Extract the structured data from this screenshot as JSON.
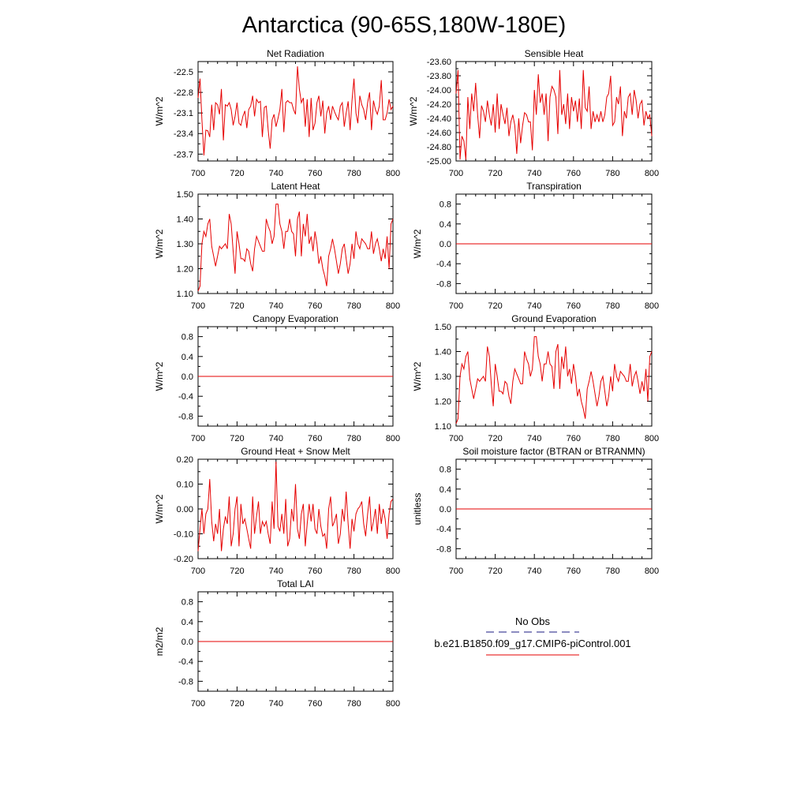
{
  "suptitle": "Antarctica (90-65S,180W-180E)",
  "colors": {
    "model": "#e60000",
    "obs": "#1a1a80",
    "axis": "#000000"
  },
  "legend": {
    "obs_label": "No Obs",
    "model_label": "b.e21.B1850.f09_g17.CMIP6-piControl.001"
  },
  "chart_data": [
    {
      "type": "line",
      "title": "Net Radiation",
      "ylabel": "W/m^2",
      "xlim": [
        700,
        800
      ],
      "ylim": [
        -23.8,
        -22.35
      ],
      "xticks": [
        700,
        720,
        740,
        760,
        780,
        800
      ],
      "xtick_labels": [
        "700",
        "720",
        "740",
        "760",
        "780",
        "800"
      ],
      "yticks": [
        -22.5,
        -22.8,
        -23.1,
        -23.4,
        -23.7
      ],
      "ytick_labels": [
        "-22.5",
        "-22.8",
        "-23.1",
        "-23.4",
        "-23.7"
      ],
      "x0": 700,
      "dx": 1,
      "values": [
        -22.88,
        -22.6,
        -23.2,
        -23.72,
        -23.35,
        -23.36,
        -23.45,
        -22.98,
        -23.35,
        -22.95,
        -22.98,
        -23.12,
        -22.75,
        -23.5,
        -22.98,
        -23.0,
        -22.95,
        -23.05,
        -23.28,
        -23.15,
        -22.95,
        -23.25,
        -23.28,
        -23.15,
        -23.07,
        -23.32,
        -23.05,
        -23.0,
        -22.85,
        -23.15,
        -22.9,
        -22.95,
        -22.93,
        -23.45,
        -23.02,
        -23.0,
        -23.35,
        -23.62,
        -23.2,
        -23.12,
        -23.3,
        -23.18,
        -23.05,
        -22.75,
        -23.38,
        -22.95,
        -22.92,
        -22.95,
        -22.95,
        -23.05,
        -23.12,
        -22.42,
        -22.75,
        -22.95,
        -22.88,
        -23.3,
        -22.9,
        -23.45,
        -22.88,
        -23.35,
        -23.25,
        -22.95,
        -22.85,
        -23.15,
        -22.92,
        -23.4,
        -23.1,
        -23.0,
        -23.2,
        -23.0,
        -23.08,
        -23.15,
        -23.2,
        -23.0,
        -22.95,
        -23.3,
        -23.1,
        -22.93,
        -23.35,
        -22.92,
        -22.6,
        -23.1,
        -23.25,
        -22.85,
        -22.98,
        -23.05,
        -23.2,
        -22.95,
        -22.8,
        -23.35,
        -22.92,
        -23.05,
        -23.12,
        -23.0,
        -22.62,
        -23.2,
        -23.2,
        -23.1,
        -22.9,
        -23.05,
        -23.0
      ]
    },
    {
      "type": "line",
      "title": "Sensible Heat",
      "ylabel": "W/m^2",
      "xlim": [
        700,
        800
      ],
      "ylim": [
        -25.0,
        -23.6
      ],
      "xticks": [
        700,
        720,
        740,
        760,
        780,
        800
      ],
      "xtick_labels": [
        "700",
        "720",
        "740",
        "760",
        "780",
        "800"
      ],
      "yticks": [
        -23.6,
        -23.8,
        -24.0,
        -24.2,
        -24.4,
        -24.6,
        -24.8,
        -25.0
      ],
      "ytick_labels": [
        "-23.60",
        "-23.80",
        "-24.00",
        "-24.20",
        "-24.40",
        "-24.60",
        "-24.80",
        "-25.00"
      ],
      "x0": 700,
      "dx": 1,
      "values": [
        -24.05,
        -23.72,
        -24.98,
        -24.65,
        -24.72,
        -24.98,
        -24.1,
        -24.55,
        -24.05,
        -24.3,
        -23.9,
        -24.35,
        -24.68,
        -24.22,
        -24.3,
        -24.45,
        -24.15,
        -24.35,
        -24.5,
        -24.2,
        -24.6,
        -24.05,
        -24.55,
        -24.2,
        -24.35,
        -24.48,
        -24.25,
        -24.65,
        -24.45,
        -24.35,
        -24.5,
        -24.9,
        -24.4,
        -24.75,
        -24.5,
        -24.32,
        -24.35,
        -24.45,
        -24.45,
        -24.85,
        -24.0,
        -24.35,
        -23.78,
        -24.18,
        -24.05,
        -24.35,
        -24.05,
        -24.72,
        -24.1,
        -23.95,
        -24.0,
        -24.1,
        -24.62,
        -23.72,
        -24.35,
        -24.2,
        -24.48,
        -24.05,
        -24.55,
        -24.1,
        -24.3,
        -24.15,
        -24.45,
        -24.12,
        -24.55,
        -23.72,
        -24.25,
        -24.3,
        -23.95,
        -24.55,
        -24.3,
        -24.45,
        -24.35,
        -24.45,
        -24.3,
        -24.45,
        -24.35,
        -24.1,
        -24.05,
        -23.8,
        -24.5,
        -24.45,
        -24.1,
        -24.2,
        -23.95,
        -24.65,
        -24.3,
        -24.4,
        -24.1,
        -24.05,
        -24.35,
        -24.0,
        -24.15,
        -24.4,
        -24.2,
        -24.15,
        -24.5,
        -24.3,
        -24.4,
        -24.35,
        -24.65
      ]
    },
    {
      "type": "line",
      "title": "Latent Heat",
      "ylabel": "W/m^2",
      "xlim": [
        700,
        800
      ],
      "ylim": [
        1.1,
        1.5
      ],
      "xticks": [
        700,
        720,
        740,
        760,
        780,
        800
      ],
      "xtick_labels": [
        "700",
        "720",
        "740",
        "760",
        "780",
        "800"
      ],
      "yticks": [
        1.5,
        1.4,
        1.3,
        1.2,
        1.1
      ],
      "ytick_labels": [
        "1.50",
        "1.40",
        "1.30",
        "1.20",
        "1.10"
      ],
      "x0": 700,
      "dx": 1,
      "values": [
        1.11,
        1.13,
        1.3,
        1.35,
        1.33,
        1.38,
        1.4,
        1.29,
        1.25,
        1.21,
        1.25,
        1.29,
        1.28,
        1.29,
        1.3,
        1.28,
        1.42,
        1.38,
        1.27,
        1.18,
        1.35,
        1.3,
        1.24,
        1.24,
        1.23,
        1.28,
        1.27,
        1.22,
        1.19,
        1.28,
        1.33,
        1.31,
        1.29,
        1.27,
        1.27,
        1.4,
        1.37,
        1.35,
        1.3,
        1.33,
        1.46,
        1.46,
        1.38,
        1.35,
        1.28,
        1.35,
        1.35,
        1.4,
        1.35,
        1.34,
        1.25,
        1.4,
        1.43,
        1.25,
        1.38,
        1.33,
        1.42,
        1.3,
        1.33,
        1.27,
        1.35,
        1.3,
        1.22,
        1.25,
        1.2,
        1.17,
        1.13,
        1.25,
        1.28,
        1.32,
        1.28,
        1.23,
        1.18,
        1.22,
        1.28,
        1.3,
        1.24,
        1.18,
        1.22,
        1.3,
        1.24,
        1.35,
        1.3,
        1.28,
        1.32,
        1.31,
        1.3,
        1.28,
        1.28,
        1.35,
        1.26,
        1.3,
        1.32,
        1.28,
        1.23,
        1.28,
        1.24,
        1.33,
        1.2,
        1.38,
        1.4
      ]
    },
    {
      "type": "line",
      "title": "Transpiration",
      "ylabel": "W/m^2",
      "xlim": [
        700,
        800
      ],
      "ylim": [
        -1.0,
        1.0
      ],
      "xticks": [
        700,
        720,
        740,
        760,
        780,
        800
      ],
      "xtick_labels": [
        "700",
        "720",
        "740",
        "760",
        "780",
        "800"
      ],
      "yticks": [
        0.8,
        0.4,
        0.0,
        -0.4,
        -0.8
      ],
      "ytick_labels": [
        "0.8",
        "0.4",
        "0.0",
        "-0.4",
        "-0.8"
      ],
      "x": [
        700,
        800
      ],
      "values": [
        0,
        0
      ]
    },
    {
      "type": "line",
      "title": "Canopy Evaporation",
      "ylabel": "W/m^2",
      "xlim": [
        700,
        800
      ],
      "ylim": [
        -1.0,
        1.0
      ],
      "xticks": [
        700,
        720,
        740,
        760,
        780,
        800
      ],
      "xtick_labels": [
        "700",
        "720",
        "740",
        "760",
        "780",
        "800"
      ],
      "yticks": [
        0.8,
        0.4,
        0.0,
        -0.4,
        -0.8
      ],
      "ytick_labels": [
        "0.8",
        "0.4",
        "0.0",
        "-0.4",
        "-0.8"
      ],
      "x": [
        700,
        800
      ],
      "values": [
        0,
        0
      ]
    },
    {
      "type": "line",
      "title": "Ground Evaporation",
      "ylabel": "W/m^2",
      "xlim": [
        700,
        800
      ],
      "ylim": [
        1.1,
        1.5
      ],
      "xticks": [
        700,
        720,
        740,
        760,
        780,
        800
      ],
      "xtick_labels": [
        "700",
        "720",
        "740",
        "760",
        "780",
        "800"
      ],
      "yticks": [
        1.5,
        1.4,
        1.3,
        1.2,
        1.1
      ],
      "ytick_labels": [
        "1.50",
        "1.40",
        "1.30",
        "1.20",
        "1.10"
      ],
      "x0": 700,
      "dx": 1,
      "values": [
        1.11,
        1.13,
        1.3,
        1.35,
        1.33,
        1.38,
        1.4,
        1.29,
        1.25,
        1.21,
        1.25,
        1.29,
        1.28,
        1.29,
        1.3,
        1.28,
        1.42,
        1.38,
        1.27,
        1.18,
        1.35,
        1.3,
        1.24,
        1.24,
        1.23,
        1.28,
        1.27,
        1.22,
        1.19,
        1.28,
        1.33,
        1.31,
        1.29,
        1.27,
        1.27,
        1.4,
        1.37,
        1.35,
        1.3,
        1.33,
        1.46,
        1.46,
        1.38,
        1.35,
        1.28,
        1.35,
        1.35,
        1.4,
        1.35,
        1.34,
        1.25,
        1.4,
        1.43,
        1.25,
        1.38,
        1.33,
        1.42,
        1.3,
        1.33,
        1.27,
        1.35,
        1.3,
        1.22,
        1.25,
        1.2,
        1.17,
        1.13,
        1.25,
        1.28,
        1.32,
        1.28,
        1.23,
        1.18,
        1.22,
        1.28,
        1.3,
        1.24,
        1.18,
        1.22,
        1.3,
        1.24,
        1.35,
        1.3,
        1.28,
        1.32,
        1.31,
        1.3,
        1.28,
        1.28,
        1.35,
        1.26,
        1.3,
        1.32,
        1.28,
        1.23,
        1.28,
        1.24,
        1.33,
        1.2,
        1.38,
        1.4
      ]
    },
    {
      "type": "line",
      "title": "Ground Heat + Snow Melt",
      "ylabel": "W/m^2",
      "xlim": [
        700,
        800
      ],
      "ylim": [
        -0.2,
        0.2
      ],
      "xticks": [
        700,
        720,
        740,
        760,
        780,
        800
      ],
      "xtick_labels": [
        "700",
        "720",
        "740",
        "760",
        "780",
        "800"
      ],
      "yticks": [
        0.2,
        0.1,
        0.0,
        -0.1,
        -0.2
      ],
      "ytick_labels": [
        "0.20",
        "0.10",
        "0.00",
        "-0.10",
        "-0.20"
      ],
      "x0": 700,
      "dx": 1,
      "values": [
        -0.17,
        -0.08,
        0.0,
        -0.1,
        -0.02,
        0.0,
        0.12,
        -0.05,
        -0.13,
        -0.06,
        -0.1,
        0.0,
        -0.17,
        -0.08,
        -0.03,
        -0.06,
        0.05,
        -0.15,
        -0.1,
        0.0,
        0.05,
        -0.15,
        0.02,
        -0.06,
        -0.04,
        -0.08,
        -0.12,
        -0.16,
        0.05,
        -0.1,
        -0.03,
        0.03,
        -0.1,
        -0.05,
        -0.07,
        -0.05,
        -0.1,
        -0.14,
        0.03,
        -0.08,
        0.19,
        -0.07,
        -0.09,
        -0.02,
        -0.1,
        0.04,
        -0.15,
        -0.12,
        0.0,
        -0.05,
        0.1,
        -0.08,
        -0.12,
        -0.02,
        0.02,
        -0.15,
        -0.06,
        0.02,
        -0.05,
        0.02,
        -0.08,
        -0.1,
        0.0,
        -0.07,
        -0.11,
        -0.1,
        -0.16,
        0.0,
        0.05,
        -0.07,
        -0.05,
        -0.02,
        -0.14,
        -0.1,
        0.0,
        -0.05,
        0.07,
        -0.06,
        -0.16,
        -0.04,
        -0.09,
        -0.02,
        0.0,
        0.01,
        0.03,
        -0.06,
        -0.11,
        -0.02,
        0.05,
        -0.09,
        -0.05,
        0.0,
        -0.1,
        0.02,
        -0.06,
        0.0,
        -0.04,
        -0.12,
        -0.02,
        0.03,
        0.04
      ]
    },
    {
      "type": "line",
      "title": "Soil moisture factor (BTRAN or BTRANMN)",
      "ylabel": "unitless",
      "xlim": [
        700,
        800
      ],
      "ylim": [
        -1.0,
        1.0
      ],
      "xticks": [
        700,
        720,
        740,
        760,
        780,
        800
      ],
      "xtick_labels": [
        "700",
        "720",
        "740",
        "760",
        "780",
        "800"
      ],
      "yticks": [
        0.8,
        0.4,
        0.0,
        -0.4,
        -0.8
      ],
      "ytick_labels": [
        "0.8",
        "0.4",
        "0.0",
        "-0.4",
        "-0.8"
      ],
      "x": [
        700,
        800
      ],
      "values": [
        0,
        0
      ]
    },
    {
      "type": "line",
      "title": "Total LAI",
      "ylabel": "m2/m2",
      "xlim": [
        700,
        800
      ],
      "ylim": [
        -1.0,
        1.0
      ],
      "xticks": [
        700,
        720,
        740,
        760,
        780,
        800
      ],
      "xtick_labels": [
        "700",
        "720",
        "740",
        "760",
        "780",
        "800"
      ],
      "yticks": [
        0.8,
        0.4,
        0.0,
        -0.4,
        -0.8
      ],
      "ytick_labels": [
        "0.8",
        "0.4",
        "0.0",
        "-0.4",
        "-0.8"
      ],
      "x": [
        700,
        800
      ],
      "values": [
        0,
        0
      ]
    }
  ]
}
